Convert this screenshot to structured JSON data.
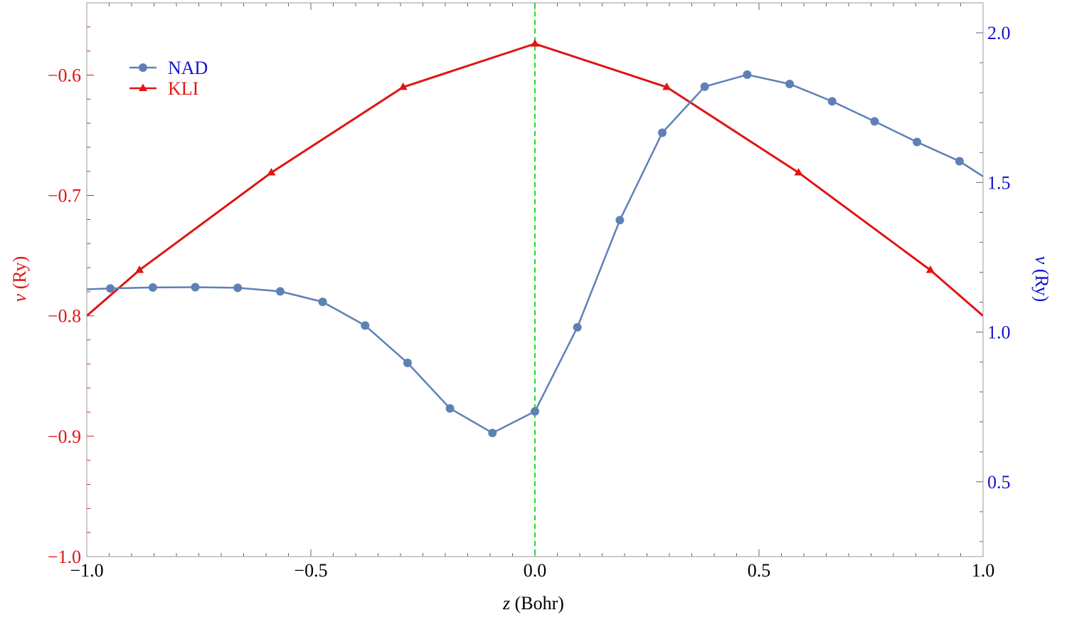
{
  "chart_data": {
    "type": "line",
    "xlabel_var": "z",
    "xlabel_unit": " (Bohr)",
    "ylabel_left_var": "v",
    "ylabel_left_unit": " (Ry)",
    "ylabel_right_var": "v",
    "ylabel_right_unit": " (Ry)",
    "xlim": [
      -1.0,
      1.0
    ],
    "ylim_left": [
      -1.0,
      -0.54
    ],
    "ylim_right": [
      0.25,
      2.1
    ],
    "x_ticks": [
      -1.0,
      -0.5,
      0.0,
      0.5,
      1.0
    ],
    "x_tick_labels": [
      "−1.0",
      "−0.5",
      "0.0",
      "0.5",
      "1.0"
    ],
    "y_left_ticks": [
      -1.0,
      -0.9,
      -0.8,
      -0.7,
      -0.6
    ],
    "y_left_tick_labels": [
      "−1.0",
      "−0.9",
      "−0.8",
      "−0.7",
      "−0.6"
    ],
    "y_right_ticks": [
      0.5,
      1.0,
      1.5,
      2.0
    ],
    "y_right_tick_labels": [
      "0.5",
      "1.0",
      "1.5",
      "2.0"
    ],
    "reference_line_x": 0.0,
    "legend_position": "top-left",
    "series": [
      {
        "name": "NAD",
        "axis": "right",
        "color": "#5e81b5",
        "marker": "circle",
        "x": [
          -1.0,
          -0.9474,
          -0.8526,
          -0.7579,
          -0.6632,
          -0.5684,
          -0.4737,
          -0.3789,
          -0.2842,
          -0.1895,
          -0.0947,
          0.0,
          0.0947,
          0.1895,
          0.2842,
          0.3789,
          0.4737,
          0.5684,
          0.6632,
          0.7579,
          0.8526,
          0.9474,
          1.0
        ],
        "marker_from": 1,
        "marker_to": 21,
        "values": [
          1.143,
          1.146,
          1.149,
          1.15,
          1.148,
          1.136,
          1.101,
          1.022,
          0.897,
          0.745,
          0.663,
          0.735,
          1.016,
          1.374,
          1.666,
          1.82,
          1.86,
          1.829,
          1.771,
          1.704,
          1.635,
          1.571,
          1.52
        ]
      },
      {
        "name": "KLI",
        "axis": "left",
        "color": "#e01414",
        "marker": "triangle",
        "x": [
          -1.0,
          -0.8824,
          -0.5882,
          -0.2941,
          0.0,
          0.2941,
          0.5882,
          0.8824,
          1.0
        ],
        "marker_from": 1,
        "marker_to": 7,
        "values": [
          -0.8,
          -0.762,
          -0.681,
          -0.61,
          -0.574,
          -0.61,
          -0.681,
          -0.762,
          -0.8
        ]
      }
    ],
    "colors": {
      "left_axis": "#e01414",
      "right_axis": "#1414cc",
      "reference_line": "#22dd22",
      "frame": "#999999",
      "x_labels": "#000000"
    }
  }
}
